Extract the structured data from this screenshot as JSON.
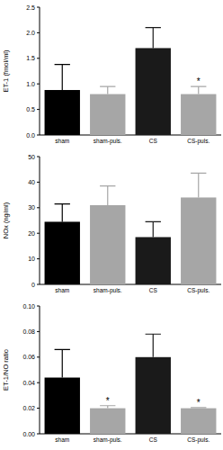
{
  "chart_data": [
    {
      "type": "bar",
      "y_label": "ET-1 (fmol/ml)",
      "categories": [
        "sham",
        "sham-puls.",
        "CS",
        "CS-puls."
      ],
      "values": [
        0.88,
        0.8,
        1.7,
        0.8
      ],
      "errors": [
        0.5,
        0.15,
        0.4,
        0.15
      ],
      "colors": [
        "#000000",
        "#a6a6a6",
        "#1a1a1a",
        "#a6a6a6"
      ],
      "ylim": [
        0,
        2.5
      ],
      "yticks": [
        {
          "value": 0,
          "label": "0.0"
        },
        0.5,
        {
          "value": 1,
          "label": "1.0"
        },
        1.5,
        {
          "value": 2,
          "label": "2.0"
        },
        2.5
      ],
      "annotations": [
        {
          "category": "CS-puls.",
          "text": "*"
        }
      ]
    },
    {
      "type": "bar",
      "y_label": "NOx (ng/ml)",
      "categories": [
        "sham",
        "sham-puls.",
        "CS",
        "CS-puls."
      ],
      "values": [
        24.5,
        31,
        18.5,
        34
      ],
      "errors": [
        7,
        7.5,
        6,
        9.5
      ],
      "colors": [
        "#000000",
        "#a6a6a6",
        "#1a1a1a",
        "#a6a6a6"
      ],
      "ylim": [
        0,
        50
      ],
      "yticks": [
        0,
        10,
        20,
        30,
        40,
        50
      ]
    },
    {
      "type": "bar",
      "y_label": "ET-1/NO ratio",
      "categories": [
        "sham",
        "sham-puls.",
        "CS",
        "CS-puls."
      ],
      "values": [
        0.044,
        0.02,
        0.06,
        0.02
      ],
      "errors": [
        0.022,
        0.002,
        0.018,
        0.0005
      ],
      "colors": [
        "#000000",
        "#a6a6a6",
        "#1a1a1a",
        "#a6a6a6"
      ],
      "ylim": [
        0,
        0.1
      ],
      "yticks": [
        {
          "value": 0,
          "label": "0.00"
        },
        0.02,
        0.04,
        0.06,
        0.08,
        {
          "value": 0.1,
          "label": "0.10"
        }
      ],
      "annotations": [
        {
          "category": "sham-puls.",
          "text": "*"
        },
        {
          "category": "CS-puls.",
          "text": "*"
        }
      ]
    }
  ]
}
